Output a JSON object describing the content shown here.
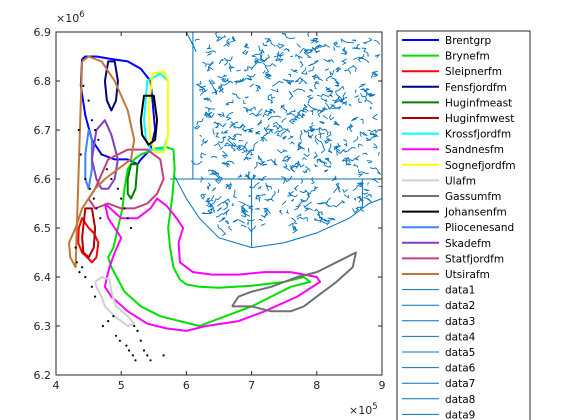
{
  "chart_data": {
    "type": "line",
    "xlim": [
      4,
      9
    ],
    "ylim": [
      6.2,
      6.9
    ],
    "x_exponent_label": "×10",
    "x_exponent_power": "5",
    "y_exponent_label": "×10",
    "y_exponent_power": "6",
    "x_ticks": [
      4,
      5,
      6,
      7,
      8,
      9
    ],
    "x_tick_labels": [
      "4",
      "5",
      "6",
      "7",
      "8",
      "9"
    ],
    "y_ticks": [
      6.2,
      6.3,
      6.4,
      6.5,
      6.6,
      6.7,
      6.8,
      6.9
    ],
    "y_tick_labels": [
      "6.2",
      "6.3",
      "6.4",
      "6.5",
      "6.6",
      "6.7",
      "6.8",
      "6.9"
    ],
    "grid": false,
    "legend_placement": "outside-right",
    "series": [
      {
        "name": "Brentgrp",
        "color": "#0000ff",
        "width": 2,
        "x": [
          4.4,
          4.45,
          4.62,
          4.85,
          5.1,
          5.3,
          5.45,
          5.48,
          5.52,
          5.45,
          5.3,
          5.25,
          5.1,
          4.9,
          4.7,
          4.55,
          4.45,
          4.38,
          4.4
        ],
        "y": [
          6.845,
          6.85,
          6.85,
          6.845,
          6.84,
          6.825,
          6.8,
          6.76,
          6.7,
          6.66,
          6.64,
          6.63,
          6.64,
          6.64,
          6.65,
          6.68,
          6.73,
          6.79,
          6.845
        ]
      },
      {
        "name": "Brynefm",
        "color": "#00e000",
        "width": 2,
        "x": [
          5.4,
          5.5,
          5.7,
          5.8,
          5.82,
          5.78,
          5.72,
          5.75,
          5.8,
          5.9,
          6.0,
          6.2,
          6.5,
          7.0,
          7.5,
          7.8,
          7.9,
          7.6,
          7.3,
          7.0,
          6.6,
          6.2,
          5.9,
          5.6,
          5.3,
          5.05,
          4.85,
          4.8,
          4.88,
          4.95,
          5.02,
          5.05,
          5.1,
          5.2,
          5.3,
          5.4
        ],
        "y": [
          6.655,
          6.662,
          6.665,
          6.66,
          6.62,
          6.56,
          6.5,
          6.46,
          6.42,
          6.395,
          6.385,
          6.38,
          6.378,
          6.382,
          6.39,
          6.4,
          6.39,
          6.38,
          6.36,
          6.34,
          6.32,
          6.3,
          6.31,
          6.32,
          6.34,
          6.37,
          6.42,
          6.44,
          6.46,
          6.5,
          6.54,
          6.58,
          6.62,
          6.64,
          6.65,
          6.655
        ]
      },
      {
        "name": "Sleipnerfm",
        "color": "#ff0000",
        "width": 2,
        "x": [
          4.35,
          4.4,
          4.5,
          4.58,
          4.65,
          4.62,
          4.55,
          4.48,
          4.4,
          4.34,
          4.35
        ],
        "y": [
          6.5,
          6.52,
          6.5,
          6.49,
          6.47,
          6.44,
          6.43,
          6.44,
          6.45,
          6.47,
          6.5
        ]
      },
      {
        "name": "Fensfjordfm",
        "color": "#000080",
        "width": 2,
        "x": [
          4.75,
          4.8,
          4.9,
          4.95,
          4.92,
          4.85,
          4.78,
          4.75
        ],
        "y": [
          6.8,
          6.84,
          6.84,
          6.8,
          6.76,
          6.74,
          6.76,
          6.8
        ]
      },
      {
        "name": "Huginfmeast",
        "color": "#008000",
        "width": 2,
        "x": [
          5.1,
          5.15,
          5.25,
          5.22,
          5.15,
          5.1,
          5.1
        ],
        "y": [
          6.6,
          6.63,
          6.63,
          6.58,
          6.56,
          6.57,
          6.6
        ]
      },
      {
        "name": "Huginfmwest",
        "color": "#b00000",
        "width": 2,
        "x": [
          4.4,
          4.45,
          4.55,
          4.6,
          4.58,
          4.5,
          4.42,
          4.4
        ],
        "y": [
          6.48,
          6.54,
          6.54,
          6.5,
          6.46,
          6.44,
          6.45,
          6.48
        ]
      },
      {
        "name": "Krossfjordfm",
        "color": "#00ffff",
        "width": 2,
        "x": [
          5.35,
          5.4,
          5.6,
          5.72,
          5.72,
          5.65,
          5.45,
          5.38,
          5.35
        ],
        "y": [
          6.72,
          6.8,
          6.815,
          6.8,
          6.69,
          6.66,
          6.66,
          6.68,
          6.72
        ]
      },
      {
        "name": "Sandnesfm",
        "color": "#ff00ff",
        "width": 2,
        "x": [
          4.75,
          5.0,
          5.25,
          5.45,
          5.55,
          5.7,
          5.85,
          5.95,
          5.88,
          5.9,
          6.1,
          6.4,
          6.8,
          7.2,
          7.6,
          8.0,
          8.05,
          7.7,
          7.2,
          6.8,
          6.3,
          6.0,
          5.7,
          5.4,
          5.1,
          4.85,
          4.75,
          4.78,
          4.82,
          4.9,
          5.0,
          4.9,
          4.8,
          4.75
        ],
        "y": [
          6.55,
          6.52,
          6.52,
          6.54,
          6.56,
          6.545,
          6.52,
          6.5,
          6.47,
          6.43,
          6.41,
          6.405,
          6.405,
          6.41,
          6.41,
          6.4,
          6.39,
          6.36,
          6.33,
          6.31,
          6.3,
          6.29,
          6.295,
          6.305,
          6.33,
          6.36,
          6.38,
          6.4,
          6.42,
          6.45,
          6.48,
          6.5,
          6.52,
          6.55
        ]
      },
      {
        "name": "Sognefjordfm",
        "color": "#ffff00",
        "width": 2,
        "x": [
          5.42,
          5.48,
          5.65,
          5.72,
          5.72,
          5.66,
          5.52,
          5.45,
          5.42
        ],
        "y": [
          6.74,
          6.815,
          6.82,
          6.8,
          6.69,
          6.655,
          6.655,
          6.68,
          6.74
        ]
      },
      {
        "name": "Ulafm",
        "color": "#d0d0d0",
        "width": 2,
        "x": [
          4.6,
          4.7,
          4.82,
          4.85,
          4.92,
          5.1,
          5.2,
          5.1,
          4.9,
          4.75,
          4.7,
          4.62,
          4.6
        ],
        "y": [
          6.39,
          6.4,
          6.395,
          6.37,
          6.34,
          6.32,
          6.305,
          6.3,
          6.32,
          6.34,
          6.36,
          6.38,
          6.39
        ]
      },
      {
        "name": "Gassumfm",
        "color": "#707070",
        "width": 2,
        "x": [
          6.7,
          6.8,
          7.0,
          7.3,
          7.7,
          8.0,
          8.3,
          8.6,
          8.55,
          8.3,
          8.0,
          7.8,
          7.6,
          7.3,
          7.0,
          6.8,
          6.7
        ],
        "y": [
          6.34,
          6.36,
          6.37,
          6.38,
          6.4,
          6.41,
          6.43,
          6.45,
          6.42,
          6.39,
          6.36,
          6.34,
          6.33,
          6.33,
          6.34,
          6.34,
          6.34
        ]
      },
      {
        "name": "Johansenfm",
        "color": "#000000",
        "width": 2,
        "x": [
          5.3,
          5.35,
          5.5,
          5.55,
          5.52,
          5.42,
          5.32,
          5.3
        ],
        "y": [
          6.72,
          6.77,
          6.77,
          6.72,
          6.68,
          6.67,
          6.69,
          6.72
        ]
      },
      {
        "name": "Pliocenesand",
        "color": "#3d85ff",
        "width": 2,
        "x": [
          4.45,
          4.5,
          4.55,
          4.55,
          4.5,
          4.45,
          4.45
        ],
        "y": [
          6.65,
          6.7,
          6.68,
          6.62,
          6.58,
          6.6,
          6.65
        ]
      },
      {
        "name": "Skadefm",
        "color": "#8040c0",
        "width": 2,
        "x": [
          4.55,
          4.62,
          4.75,
          4.85,
          4.95,
          4.9,
          4.8,
          4.7,
          4.62,
          4.55
        ],
        "y": [
          6.64,
          6.7,
          6.72,
          6.69,
          6.64,
          6.6,
          6.58,
          6.58,
          6.6,
          6.64
        ]
      },
      {
        "name": "Statfjordfm",
        "color": "#c04080",
        "width": 2,
        "x": [
          4.6,
          4.8,
          5.1,
          5.4,
          5.6,
          5.65,
          5.55,
          5.4,
          5.2,
          5.0,
          4.8,
          4.6,
          4.5,
          4.55,
          4.6
        ],
        "y": [
          6.58,
          6.64,
          6.66,
          6.66,
          6.64,
          6.6,
          6.57,
          6.55,
          6.54,
          6.54,
          6.55,
          6.54,
          6.56,
          6.57,
          6.58
        ]
      },
      {
        "name": "Utsirafm",
        "color": "#c07838",
        "width": 2,
        "x": [
          4.4,
          4.5,
          4.7,
          4.9,
          5.1,
          5.2,
          5.15,
          4.95,
          4.75,
          4.6,
          4.5,
          4.4,
          4.3,
          4.2,
          4.22,
          4.3,
          4.4
        ],
        "y": [
          6.84,
          6.85,
          6.84,
          6.8,
          6.74,
          6.68,
          6.64,
          6.62,
          6.6,
          6.58,
          6.56,
          6.54,
          6.5,
          6.47,
          6.44,
          6.42,
          6.84
        ]
      }
    ],
    "extra_legend_entries": [
      {
        "name": "data1",
        "color": "#0072bd"
      },
      {
        "name": "data2",
        "color": "#0072bd"
      },
      {
        "name": "data3",
        "color": "#0072bd"
      },
      {
        "name": "data4",
        "color": "#0072bd"
      },
      {
        "name": "data5",
        "color": "#0072bd"
      },
      {
        "name": "data6",
        "color": "#0072bd"
      },
      {
        "name": "data7",
        "color": "#0072bd"
      },
      {
        "name": "data8",
        "color": "#0072bd"
      },
      {
        "name": "data9",
        "color": "#0072bd"
      }
    ],
    "coastline": {
      "color": "#0072bd",
      "outline": {
        "x": [
          5.8,
          6.0,
          6.2,
          6.5,
          7.0,
          7.5,
          8.0,
          8.5,
          8.7,
          8.8,
          9.0
        ],
        "y": [
          6.61,
          6.56,
          6.52,
          6.48,
          6.46,
          6.47,
          6.49,
          6.52,
          6.54,
          6.55,
          6.56
        ]
      },
      "top_left": {
        "x": [
          6.0,
          6.15
        ],
        "y": [
          6.9,
          6.86
        ]
      },
      "lines": [
        {
          "x": [
            5.75,
            9.0
          ],
          "y": [
            6.6,
            6.6
          ]
        },
        {
          "x": [
            6.1,
            6.1
          ],
          "y": [
            6.9,
            6.6
          ]
        },
        {
          "x": [
            7.0,
            7.0
          ],
          "y": [
            6.6,
            6.46
          ]
        },
        {
          "x": [
            8.7,
            8.7
          ],
          "y": [
            6.6,
            6.54
          ]
        }
      ],
      "region": {
        "xmin": 6.2,
        "xmax": 8.95,
        "ymin": 6.5,
        "ymax": 6.89
      }
    },
    "well_points": {
      "color": "#000000",
      "x": [
        4.42,
        4.5,
        4.55,
        4.6,
        4.65,
        4.7,
        4.78,
        4.85,
        4.95,
        5.0,
        5.05,
        5.1,
        5.15,
        5.2,
        5.25,
        5.3,
        5.35,
        5.4,
        5.45,
        4.35,
        4.38,
        4.45,
        4.52,
        4.58,
        4.62,
        4.68,
        4.72,
        4.8,
        4.88,
        4.92,
        4.98,
        5.08,
        5.12,
        5.18,
        5.22,
        4.4,
        4.45,
        4.55,
        4.6,
        5.65,
        4.3,
        4.32,
        4.36
      ],
      "y": [
        6.79,
        6.76,
        6.72,
        6.7,
        6.68,
        6.65,
        6.62,
        6.6,
        6.58,
        6.56,
        6.54,
        6.52,
        6.5,
        6.3,
        6.29,
        6.27,
        6.25,
        6.24,
        6.23,
        6.7,
        6.65,
        6.6,
        6.58,
        6.56,
        6.54,
        6.52,
        6.3,
        6.31,
        6.32,
        6.28,
        6.27,
        6.26,
        6.25,
        6.24,
        6.23,
        6.42,
        6.4,
        6.38,
        6.36,
        6.24,
        6.46,
        6.43,
        6.41
      ]
    }
  }
}
